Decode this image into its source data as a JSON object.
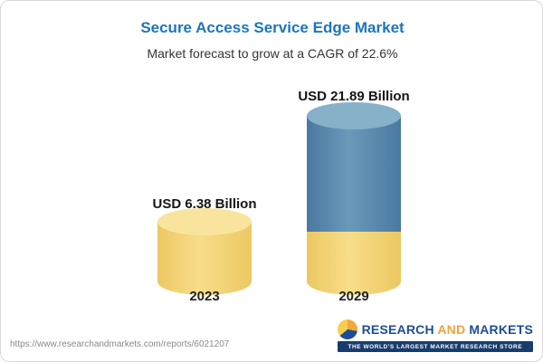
{
  "chart_data": {
    "type": "bar",
    "title": "Secure Access Service Edge Market",
    "subtitle": "Market forecast to grow at a CAGR of 22.6%",
    "cagr_percent": 22.6,
    "categories": [
      "2023",
      "2029"
    ],
    "values": [
      6.38,
      21.89
    ],
    "unit": "USD Billion",
    "value_labels": [
      "USD 6.38 Billion",
      "USD 21.89 Billion"
    ],
    "colors": {
      "bar_2023": "#f0cd6a",
      "bar_2029_top_segment": "#4d7ea4",
      "bar_2029_base_segment": "#f0cd6a",
      "title_blue": "#1c75ba"
    },
    "legend_position": "none",
    "grid": false
  },
  "footer": {
    "url": "https://www.researchandmarkets.com/reports/6021207",
    "logo": {
      "research": "RESEARCH",
      "and": "AND",
      "markets": "MARKETS",
      "tagline": "THE WORLD'S LARGEST MARKET RESEARCH STORE"
    }
  }
}
